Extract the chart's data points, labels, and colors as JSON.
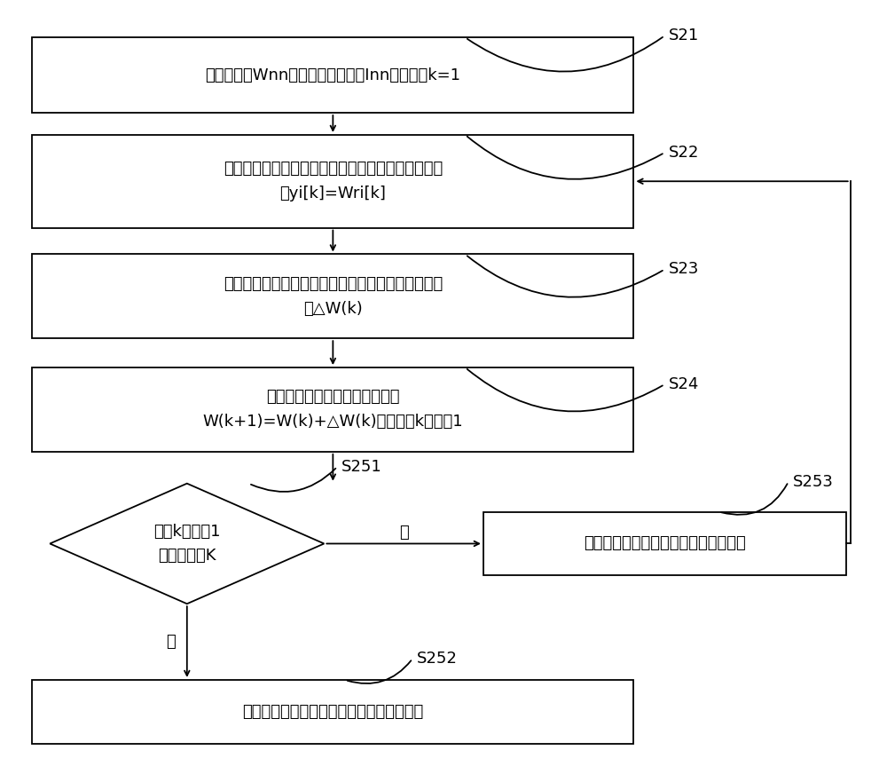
{
  "bg_color": "#ffffff",
  "line_color": "#000000",
  "box_color": "#ffffff",
  "text_color": "#000000",
  "s21_text": "将分离矩阵Wnn初始化为单位矩阵Inn，并且令k=1",
  "s22_text_l1": "根据混叠信号矩阵，用分离矩阵计算源信号估计值矩",
  "s22_text_l2": "阵yi[k]=Wri[k]",
  "s23_text_l1": "根据源信号估计值矩阵和分离矩阵，计算自然梯度增",
  "s23_text_l2": "量△W(k)",
  "s24_text_l1": "根据自然梯度增量更新分离矩阵",
  "s24_text_l2": "W(k+1)=W(k)+△W(k)，并且将k的值加1",
  "s251_text_l1": "判断k的值加1",
  "s251_text_l2": "后是否大于K",
  "s252_text": "将更新后的分离矩阵作为计算后的分离矩阵",
  "s253_text": "将更新后的分离矩阵作为初始分离矩阵",
  "label_s21": "S21",
  "label_s22": "S22",
  "label_s23": "S23",
  "label_s24": "S24",
  "label_s251": "S251",
  "label_s252": "S252",
  "label_s253": "S253",
  "yes_text": "是",
  "no_text": "否"
}
